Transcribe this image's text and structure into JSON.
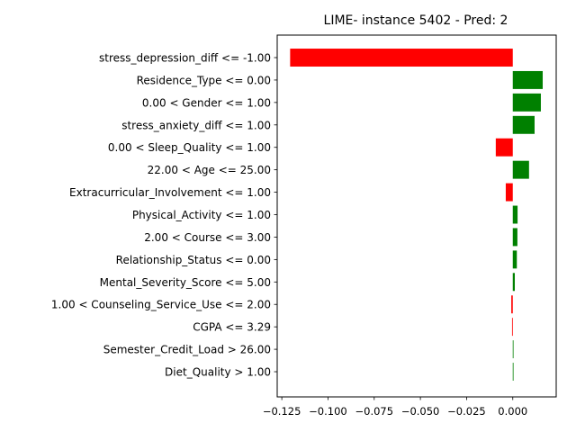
{
  "chart_data": {
    "type": "bar",
    "orientation": "horizontal",
    "title": "LIME- instance 5402 - Pred: 2",
    "xlabel": "",
    "ylabel": "",
    "xlim": [
      -0.1275,
      0.0235
    ],
    "grid": false,
    "positive_color": "#008000",
    "negative_color": "#ff0000",
    "x_ticks": [
      {
        "value": -0.125,
        "label": "−0.125"
      },
      {
        "value": -0.1,
        "label": "−0.100"
      },
      {
        "value": -0.075,
        "label": "−0.075"
      },
      {
        "value": -0.05,
        "label": "−0.050"
      },
      {
        "value": -0.025,
        "label": "−0.025"
      },
      {
        "value": 0.0,
        "label": "0.000"
      }
    ],
    "categories": [
      "stress_depression_diff <= -1.00",
      "Residence_Type <= 0.00",
      "0.00 < Gender <= 1.00",
      "stress_anxiety_diff <= 1.00",
      "0.00 < Sleep_Quality <= 1.00",
      "22.00 < Age <= 25.00",
      "Extracurricular_Involvement <= 1.00",
      "Physical_Activity <= 1.00",
      "2.00 < Course <= 3.00",
      "Relationship_Status <= 0.00",
      "Mental_Severity_Score <= 5.00",
      "1.00 < Counseling_Service_Use <= 2.00",
      "CGPA <= 3.29",
      "Semester_Credit_Load > 26.00",
      "Diet_Quality > 1.00"
    ],
    "values": [
      -0.1205,
      0.0162,
      0.0152,
      0.0118,
      -0.0092,
      0.0088,
      -0.0038,
      0.0026,
      0.0025,
      0.0022,
      0.0011,
      -0.0008,
      -0.0004,
      0.0003,
      0.0003
    ]
  }
}
